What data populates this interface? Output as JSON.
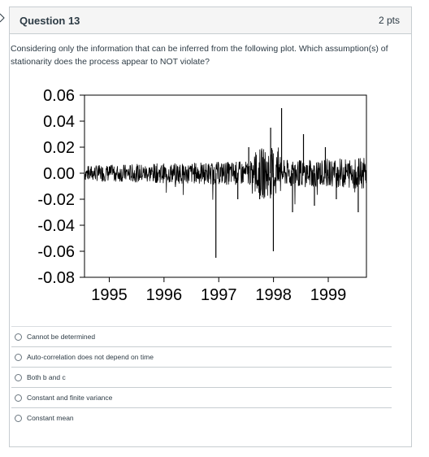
{
  "question": {
    "title": "Question 13",
    "points": "2 pts",
    "prompt": "Considering only the information that can be inferred from the following plot. Which assumption(s) of stationarity does the process appear to NOT violate?"
  },
  "icons": {
    "edge": "chevron-right-icon",
    "radio": "radio-circle-icon"
  },
  "colors": {
    "header_bg": "#f5f5f5",
    "border": "#c7cdd1",
    "text": "#2d3b45",
    "plot_line": "#000000"
  },
  "chart_data": {
    "type": "line",
    "title": "",
    "xlabel": "",
    "ylabel": "",
    "xlim": [
      1994.8,
      1999.95
    ],
    "ylim": [
      -0.08,
      0.06
    ],
    "x_ticks": [
      "1995",
      "1996",
      "1997",
      "1998",
      "1999"
    ],
    "y_ticks": [
      "0.06",
      "0.04",
      "0.02",
      "0.00",
      "-0.02",
      "-0.04",
      "-0.06",
      "-0.08"
    ],
    "grid": false,
    "legend": "none",
    "series": [
      {
        "description_values": [
          {
            "x": 1994.8,
            "y": 0.002
          },
          {
            "x": 1995.0,
            "y": 0.008
          },
          {
            "x": 1995.2,
            "y": -0.006
          },
          {
            "x": 1995.4,
            "y": 0.004
          },
          {
            "x": 1995.6,
            "y": -0.012
          },
          {
            "x": 1995.8,
            "y": 0.006
          },
          {
            "x": 1996.0,
            "y": -0.004
          },
          {
            "x": 1996.2,
            "y": 0.005
          },
          {
            "x": 1996.4,
            "y": -0.008
          },
          {
            "x": 1996.6,
            "y": 0.012
          },
          {
            "x": 1996.8,
            "y": -0.015
          },
          {
            "x": 1997.0,
            "y": 0.01
          },
          {
            "x": 1997.2,
            "y": -0.065
          },
          {
            "x": 1997.4,
            "y": 0.015
          },
          {
            "x": 1997.6,
            "y": -0.02
          },
          {
            "x": 1997.8,
            "y": 0.02
          },
          {
            "x": 1998.0,
            "y": -0.02
          },
          {
            "x": 1998.2,
            "y": 0.035
          },
          {
            "x": 1998.25,
            "y": -0.06
          },
          {
            "x": 1998.4,
            "y": 0.05
          },
          {
            "x": 1998.6,
            "y": -0.03
          },
          {
            "x": 1998.8,
            "y": 0.03
          },
          {
            "x": 1999.0,
            "y": -0.025
          },
          {
            "x": 1999.2,
            "y": 0.02
          },
          {
            "x": 1999.4,
            "y": -0.02
          },
          {
            "x": 1999.6,
            "y": 0.015
          },
          {
            "x": 1999.8,
            "y": -0.03
          },
          {
            "x": 1999.95,
            "y": 0.01
          }
        ]
      }
    ]
  },
  "answers": [
    {
      "label": "Cannot be determined"
    },
    {
      "label": "Auto-correlation does not depend on time"
    },
    {
      "label": "Both b and c"
    },
    {
      "label": "Constant and finite variance"
    },
    {
      "label": "Constant mean"
    }
  ]
}
